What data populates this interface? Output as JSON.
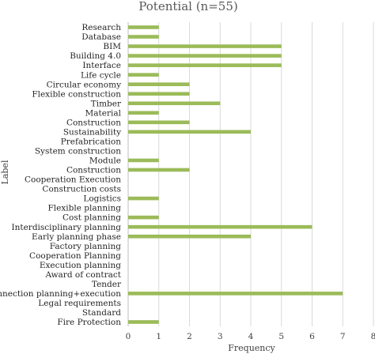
{
  "chart_data": {
    "type": "bar",
    "orientation": "horizontal",
    "title": "Potential (n=55)",
    "xlabel": "Frequency",
    "ylabel": "Label",
    "xlim": [
      0,
      8
    ],
    "xticks": [
      "0",
      "1",
      "2",
      "3",
      "4",
      "5",
      "6",
      "7",
      "8"
    ],
    "grid": true,
    "bar_color": "#9bbb59",
    "categories": [
      "Research",
      "Database",
      "BIM",
      "Building 4.0",
      "Interface",
      "Life cycle",
      "Circular economy",
      "Flexible construction",
      "Timber",
      "Material",
      "Construction",
      "Sustainability",
      "Prefabrication",
      "System construction",
      "Module",
      "Construction",
      "Cooperation Execution",
      "Construction costs",
      "Logistics",
      "Flexible planning",
      "Cost planning",
      "Interdisciplinary planning",
      "Early planning phase",
      "Factory planning",
      "Cooperation Planning",
      "Execution planning",
      "Award of contract",
      "Tender",
      "Connection planning+execution",
      "Legal requirements",
      "Standard",
      "Fire Protection"
    ],
    "values": [
      1,
      1,
      5,
      5,
      5,
      1,
      2,
      2,
      3,
      1,
      2,
      4,
      0,
      0,
      1,
      2,
      0,
      0,
      1,
      0,
      1,
      6,
      4,
      0,
      0,
      0,
      0,
      0,
      7,
      0,
      0,
      1
    ]
  }
}
